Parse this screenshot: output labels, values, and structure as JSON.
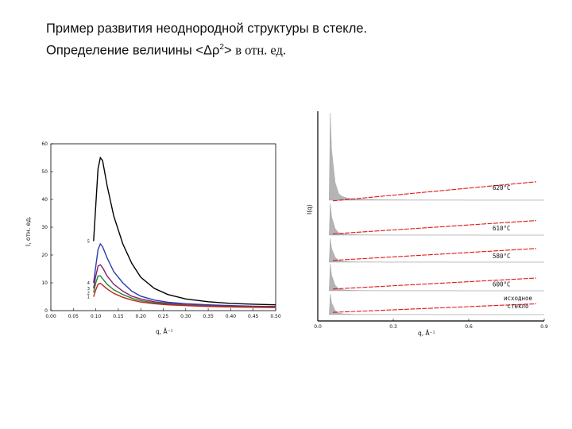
{
  "heading": {
    "line1": "Пример развития неоднородной структуры в стекле.",
    "line2_prefix": "Определение величины <Δρ",
    "line2_sup": "2",
    "line2_mid": "> ",
    "line2_serif": "в отн. ед."
  },
  "chart_data": [
    {
      "type": "line",
      "xlabel": "q, Å⁻¹",
      "ylabel": "I, отн. ед.",
      "xlim": [
        0.0,
        0.5
      ],
      "ylim": [
        0,
        60
      ],
      "x_ticks": [
        "0.00",
        "0.05",
        "0.10",
        "0.15",
        "0.20",
        "0.25",
        "0.30",
        "0.35",
        "0.40",
        "0.45",
        "0.50"
      ],
      "y_ticks": [
        "0",
        "10",
        "20",
        "30",
        "40",
        "50",
        "60"
      ],
      "grid": false,
      "series": [
        {
          "name": "5",
          "color": "#000000",
          "x": [
            0.095,
            0.1,
            0.105,
            0.11,
            0.115,
            0.125,
            0.14,
            0.16,
            0.18,
            0.2,
            0.23,
            0.26,
            0.3,
            0.35,
            0.4,
            0.45,
            0.5
          ],
          "y": [
            25,
            38,
            51,
            55,
            54,
            45,
            34,
            24,
            17,
            12,
            8,
            5.8,
            4.2,
            3.2,
            2.6,
            2.3,
            2.1
          ]
        },
        {
          "name": "4",
          "color": "#2b3bb0",
          "x": [
            0.095,
            0.1,
            0.105,
            0.11,
            0.115,
            0.125,
            0.14,
            0.16,
            0.18,
            0.2,
            0.23,
            0.26,
            0.3,
            0.35,
            0.4,
            0.45,
            0.5
          ],
          "y": [
            10,
            16,
            22,
            24,
            23,
            19,
            14,
            10,
            7,
            5.2,
            3.8,
            3,
            2.5,
            2.1,
            1.8,
            1.6,
            1.5
          ]
        },
        {
          "name": "3",
          "color": "#8a1d6a",
          "x": [
            0.095,
            0.1,
            0.105,
            0.11,
            0.115,
            0.125,
            0.14,
            0.16,
            0.18,
            0.2,
            0.23,
            0.26,
            0.3,
            0.35,
            0.4,
            0.45,
            0.5
          ],
          "y": [
            8,
            12.5,
            16,
            16.5,
            15.5,
            12.5,
            9.5,
            7,
            5.2,
            4.2,
            3.2,
            2.6,
            2.1,
            1.8,
            1.6,
            1.5,
            1.4
          ]
        },
        {
          "name": "2",
          "color": "#1f8a2e",
          "x": [
            0.095,
            0.1,
            0.105,
            0.11,
            0.115,
            0.125,
            0.14,
            0.16,
            0.18,
            0.2,
            0.23,
            0.26,
            0.3,
            0.35,
            0.4,
            0.45,
            0.5
          ],
          "y": [
            6.5,
            10,
            12.5,
            12.5,
            11.5,
            9.5,
            7.5,
            5.8,
            4.5,
            3.6,
            2.8,
            2.3,
            1.9,
            1.6,
            1.4,
            1.3,
            1.2
          ]
        },
        {
          "name": "1",
          "color": "#c42020",
          "x": [
            0.095,
            0.1,
            0.105,
            0.11,
            0.115,
            0.125,
            0.14,
            0.16,
            0.18,
            0.2,
            0.23,
            0.26,
            0.3,
            0.35,
            0.4,
            0.45,
            0.5
          ],
          "y": [
            5,
            7.5,
            9.5,
            9.8,
            9.2,
            7.8,
            6.2,
            4.8,
            3.8,
            3.1,
            2.5,
            2.1,
            1.8,
            1.5,
            1.3,
            1.2,
            1.1
          ]
        }
      ]
    },
    {
      "type": "area",
      "xlabel": "q, Å⁻¹",
      "ylabel": "I(q)",
      "x_ticks": [
        "0.0",
        "0.3",
        "0.6",
        "0.9"
      ],
      "xlim": [
        0.0,
        0.9
      ],
      "series": [
        {
          "label": "620°C",
          "peak": 0.95,
          "base_start": 0.08,
          "base_end": 0.16
        },
        {
          "label": "610°C",
          "peak": 0.32,
          "base_start": 0.04,
          "base_end": 0.12
        },
        {
          "label": "580°C",
          "peak": 0.24,
          "base_start": 0.03,
          "base_end": 0.11
        },
        {
          "label": "600°C",
          "peak": 0.28,
          "base_start": 0.03,
          "base_end": 0.1
        },
        {
          "label": "исходное стекло",
          "peak": 0.22,
          "base_start": 0.02,
          "base_end": 0.08
        }
      ]
    }
  ]
}
